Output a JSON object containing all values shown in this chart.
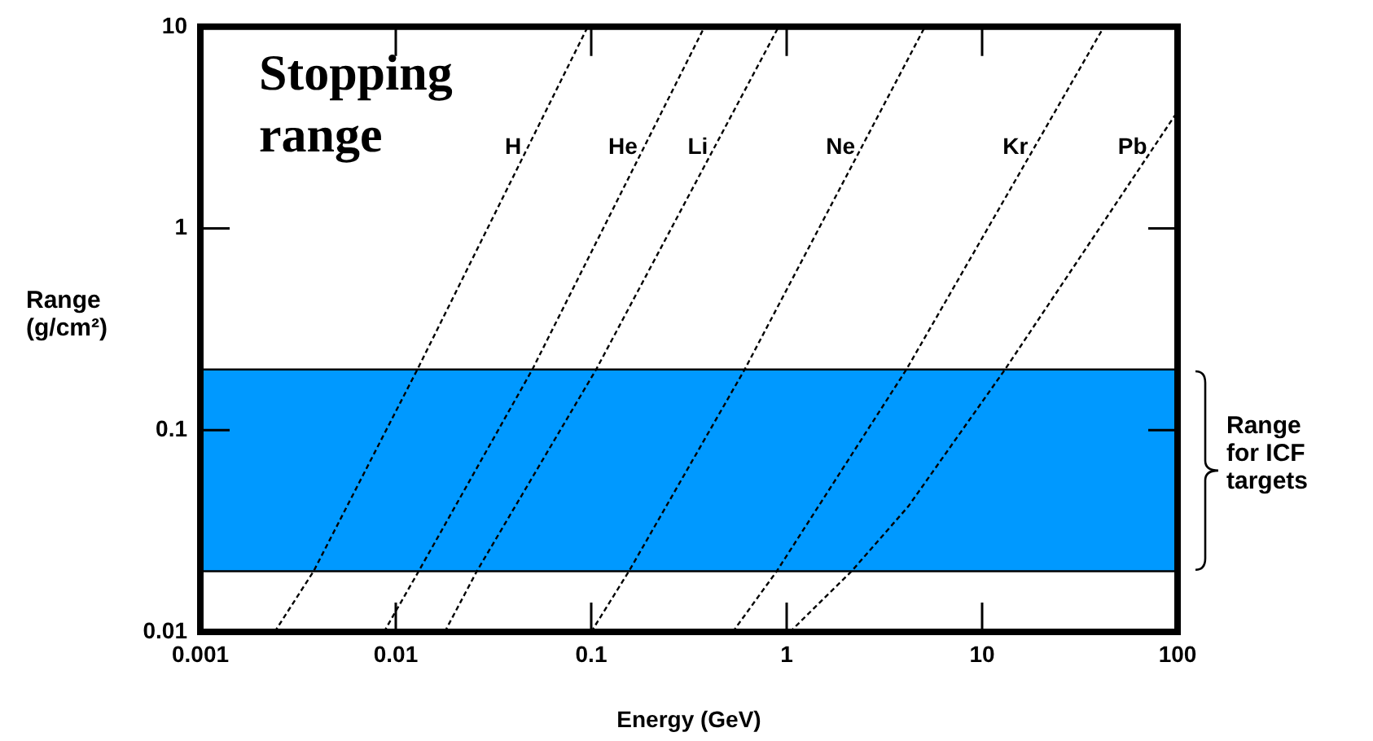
{
  "chart_data": {
    "type": "line",
    "title": "Stopping range",
    "xlabel": "Energy (GeV)",
    "ylabel": "Range (g/cm²)",
    "log": "xy",
    "grid": false,
    "legend": false,
    "marker": "none",
    "line_style": "dashed",
    "xlim": [
      0.001,
      100
    ],
    "xticks": [
      0.001,
      0.01,
      0.1,
      1,
      10,
      100
    ],
    "ylim": [
      0.01,
      10
    ],
    "yticks": [
      0.01,
      0.1,
      1,
      10
    ],
    "ref_lines": [
      {
        "axis": "y",
        "value": 0.02,
        "color": "#000000"
      },
      {
        "axis": "y",
        "value": 0.2,
        "color": "#000000"
      }
    ],
    "bands": [
      {
        "axis": "y",
        "from": 0.02,
        "to": 0.2,
        "label": "Range for ICF targets",
        "color": "#0099ff"
      }
    ],
    "series": [
      {
        "name": "H",
        "color": "#000000",
        "x": [
          0.0024,
          0.0038,
          0.0129,
          0.096
        ],
        "values": [
          0.01,
          0.02,
          0.2,
          10
        ]
      },
      {
        "name": "He",
        "color": "#000000",
        "x": [
          0.0087,
          0.0131,
          0.05,
          0.38
        ],
        "values": [
          0.01,
          0.02,
          0.2,
          10
        ]
      },
      {
        "name": "Li",
        "color": "#000000",
        "x": [
          0.0178,
          0.026,
          0.106,
          0.91
        ],
        "values": [
          0.01,
          0.02,
          0.2,
          10
        ]
      },
      {
        "name": "Ne",
        "color": "#000000",
        "x": [
          0.1,
          0.156,
          0.61,
          5.1
        ],
        "values": [
          0.01,
          0.02,
          0.2,
          10
        ]
      },
      {
        "name": "Kr",
        "color": "#000000",
        "x": [
          0.53,
          0.89,
          4.1,
          42
        ],
        "values": [
          0.01,
          0.02,
          0.2,
          10
        ]
      },
      {
        "name": "Pb",
        "color": "#000000",
        "x": [
          1.04,
          2.15,
          4.2,
          13.1,
          100
        ],
        "values": [
          0.01,
          0.02,
          0.042,
          0.2,
          3.8
        ]
      }
    ]
  }
}
